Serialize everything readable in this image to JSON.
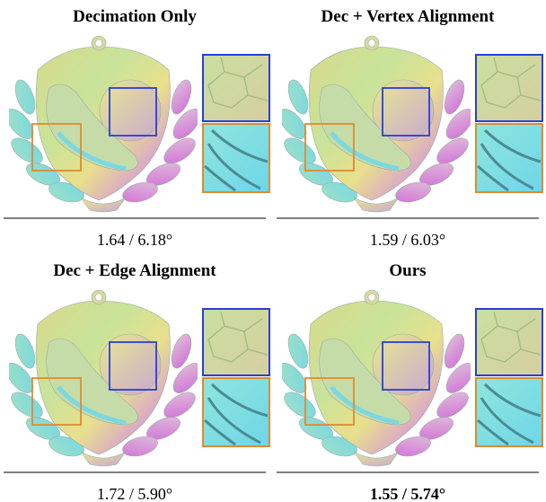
{
  "panels": [
    {
      "title": "Decimation Only",
      "metric": "1.64 / 6.18°"
    },
    {
      "title": "Dec + Vertex Alignment",
      "metric": "1.59 / 6.03°"
    },
    {
      "title": "Dec + Edge Alignment",
      "metric": "1.72 / 5.90°"
    },
    {
      "title": "Ours",
      "metric": "1.55 / 5.74°",
      "bold": true
    }
  ]
}
